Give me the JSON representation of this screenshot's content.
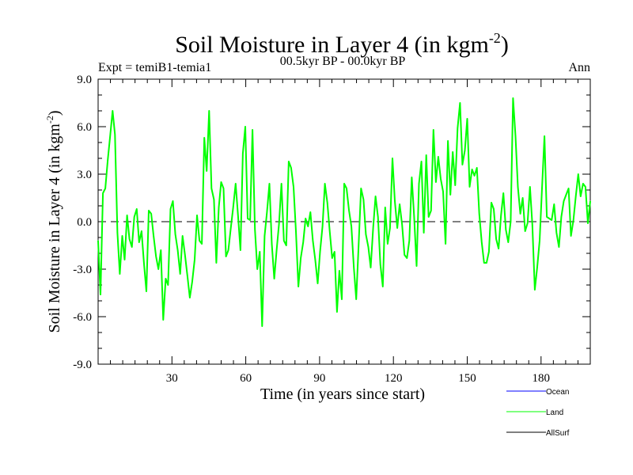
{
  "chart_data": {
    "type": "line",
    "title": "Soil Moisture in Layer 4 (in kgm",
    "title_sup": "-2",
    "title_close": ")",
    "subtitle_left": "Expt = temiB1-temia1",
    "subtitle_center": "00.5kyr BP - 00.0kyr BP",
    "subtitle_right": "Ann",
    "xlabel": "Time (in years since start)",
    "ylabel": "Soil Moisture in Layer 4 (in kgm",
    "ylabel_sup": "-2",
    "ylabel_close": ")",
    "xlim": [
      0,
      200
    ],
    "ylim": [
      -9,
      9
    ],
    "x_ticks": [
      30,
      60,
      90,
      120,
      150,
      180
    ],
    "x_tick_labels": [
      "30",
      "60",
      "90",
      "120",
      "150",
      "180"
    ],
    "y_ticks": [
      -9,
      -6,
      -3,
      0,
      3,
      6,
      9
    ],
    "y_tick_labels": [
      "-9.0",
      "-6.0",
      "-3.0",
      "0.0",
      "3.0",
      "6.0",
      "9.0"
    ],
    "zero_line": true,
    "legend": [
      {
        "name": "Ocean",
        "color": "#0000ff"
      },
      {
        "name": "Land",
        "color": "#00ff00"
      },
      {
        "name": "AllSurf",
        "color": "#000000"
      }
    ],
    "series": [
      {
        "name": "Land",
        "color": "#00ff00",
        "values": [
          -1.2,
          -4.6,
          1.8,
          2.1,
          3.9,
          5.4,
          7.0,
          5.5,
          -0.7,
          -3.3,
          -0.9,
          -2.4,
          0.4,
          -1.1,
          -1.6,
          0.3,
          0.8,
          -1.3,
          -0.6,
          -2.6,
          -4.4,
          0.7,
          0.5,
          -0.9,
          -2.2,
          -3.0,
          -1.8,
          -6.2,
          -3.6,
          -4.0,
          0.8,
          1.3,
          -0.8,
          -1.8,
          -3.3,
          -0.9,
          -2.1,
          -3.4,
          -4.8,
          -3.8,
          -2.4,
          0.4,
          -1.2,
          -1.4,
          5.3,
          3.2,
          7.0,
          2.1,
          1.4,
          -2.6,
          0.9,
          2.5,
          2.1,
          -2.2,
          -1.8,
          -0.4,
          0.9,
          2.4,
          0.4,
          -1.8,
          4.3,
          6.0,
          0.2,
          0.1,
          5.8,
          -0.5,
          -3.0,
          -1.9,
          -6.6,
          -0.9,
          0.6,
          2.4,
          -1.4,
          -3.6,
          -1.8,
          -0.1,
          2.4,
          -1.2,
          -1.5,
          3.8,
          3.4,
          2.2,
          -0.6,
          -4.1,
          -2.3,
          -1.3,
          0.2,
          -0.3,
          0.6,
          -1.2,
          -2.4,
          -3.9,
          -1.9,
          -0.3,
          2.4,
          1.2,
          -0.6,
          -2.3,
          -1.9,
          -5.7,
          -3.1,
          -4.9,
          2.4,
          2.1,
          0.7,
          -0.3,
          -2.9,
          -4.9,
          -1.4,
          2.1,
          1.4,
          -0.8,
          -1.6,
          -2.9,
          -0.4,
          1.6,
          0.3,
          -2.7,
          -4.1,
          0.9,
          -1.4,
          -0.4,
          4.0,
          1.3,
          -0.4,
          1.1,
          -0.2,
          -2.1,
          -2.3,
          -1.2,
          2.8,
          0.3,
          -2.8,
          2.4,
          3.8,
          -0.7,
          4.2,
          0.3,
          0.7,
          5.8,
          2.5,
          4.1,
          2.7,
          1.9,
          -1.4,
          5.1,
          1.7,
          4.4,
          2.3,
          5.9,
          7.5,
          3.6,
          4.5,
          6.5,
          2.2,
          3.3,
          2.9,
          3.4,
          0.5,
          -1.3,
          -2.6,
          -2.6,
          -1.9,
          1.2,
          0.8,
          -1.1,
          -1.7,
          0.4,
          1.8,
          -0.5,
          -1.3,
          0.0,
          7.8,
          5.4,
          2.2,
          0.5,
          1.5,
          -0.6,
          -0.1,
          2.2,
          -0.2,
          -4.3,
          -2.9,
          -1.2,
          2.1,
          5.4,
          0.3,
          0.2,
          0.1,
          1.1,
          -0.7,
          -1.6,
          0.3,
          1.3,
          1.7,
          2.1,
          -0.9,
          0.1,
          1.6,
          3.0,
          1.6,
          2.4,
          2.2,
          -0.1,
          1.3
        ]
      }
    ]
  }
}
